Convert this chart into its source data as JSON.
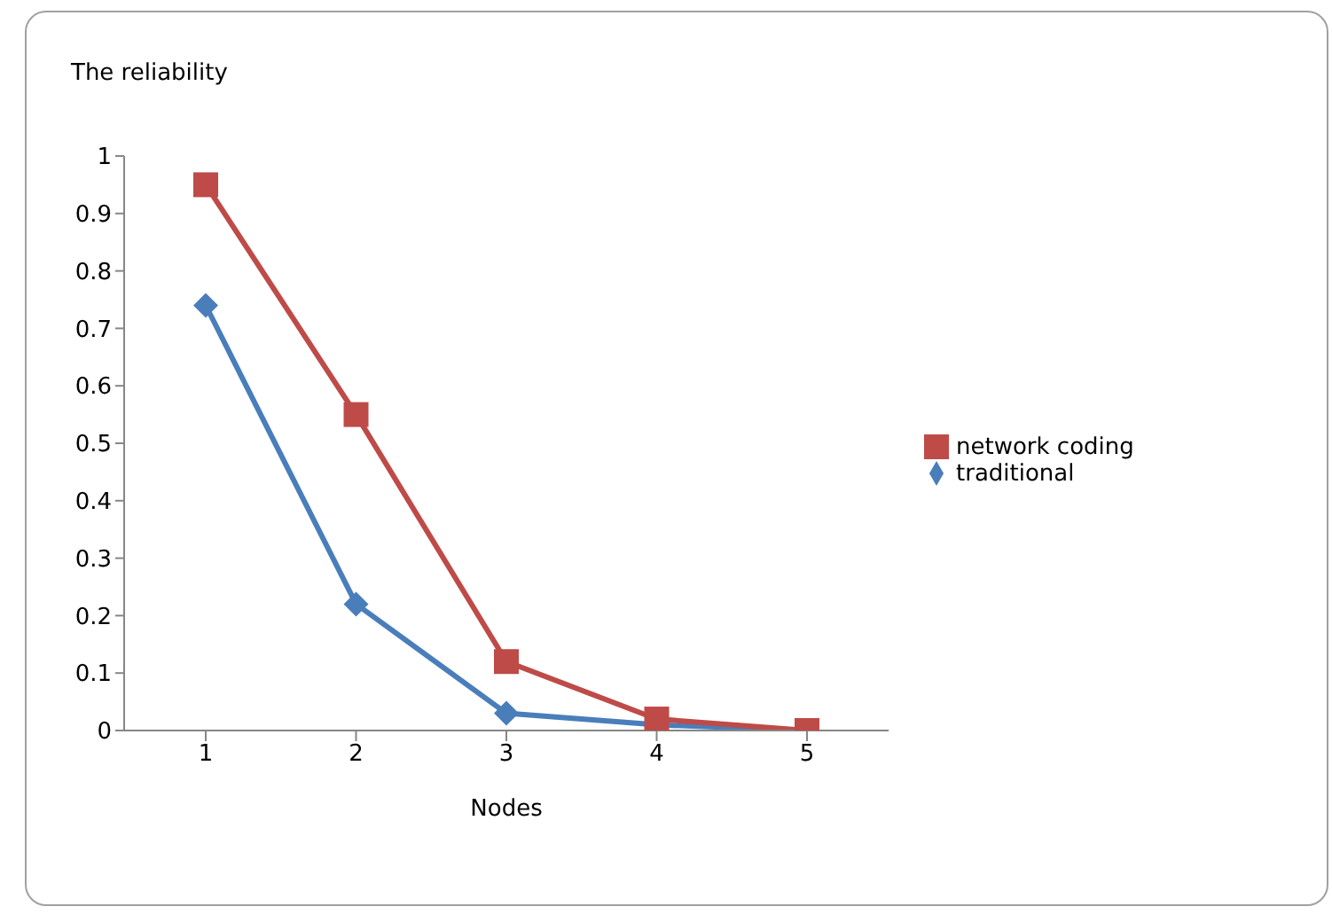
{
  "chart_data": {
    "type": "line",
    "ylabel": "The reliability",
    "xlabel": "Nodes",
    "categories": [
      "1",
      "2",
      "3",
      "4",
      "5"
    ],
    "series": [
      {
        "name": "traditional",
        "color": "#4a7ebb",
        "marker": "diamond",
        "values": [
          0.74,
          0.22,
          0.03,
          0.01,
          0.0
        ]
      },
      {
        "name": "network coding",
        "color": "#be4b48",
        "marker": "square",
        "values": [
          0.95,
          0.55,
          0.12,
          0.02,
          0.0
        ]
      }
    ],
    "ylim": [
      0,
      1
    ],
    "yticks": [
      0,
      0.1,
      0.2,
      0.3,
      0.4,
      0.5,
      0.6,
      0.7,
      0.8,
      0.9,
      1
    ],
    "grid": false,
    "legend": "right"
  }
}
